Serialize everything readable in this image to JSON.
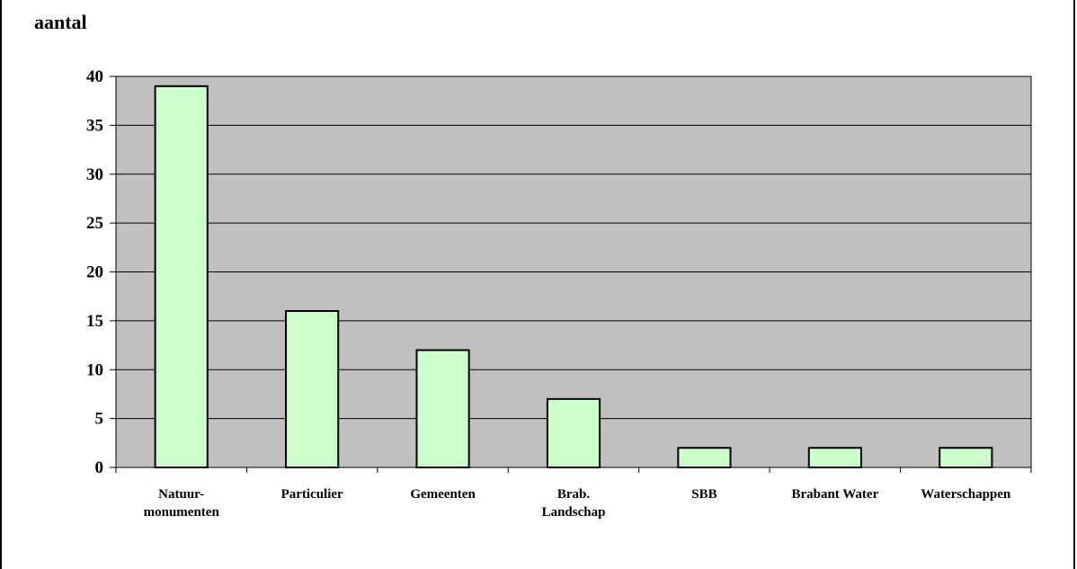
{
  "chart_data": {
    "type": "bar",
    "ylabel": "aantal",
    "xlabel": "",
    "categories": [
      [
        "Natuur-",
        "monumenten"
      ],
      [
        "Particulier"
      ],
      [
        "Gemeenten"
      ],
      [
        "Brab.",
        "Landschap"
      ],
      [
        "SBB"
      ],
      [
        "Brabant Water"
      ],
      [
        "Waterschappen"
      ]
    ],
    "values": [
      39,
      16,
      12,
      7,
      2,
      2,
      2
    ],
    "ylim": [
      0,
      40
    ],
    "yticks": [
      0,
      5,
      10,
      15,
      20,
      25,
      30,
      35,
      40
    ],
    "grid": true,
    "colors": {
      "bar": "#ccffcc",
      "plot_bg": "#c0c0c0",
      "outline": "#000000"
    }
  }
}
